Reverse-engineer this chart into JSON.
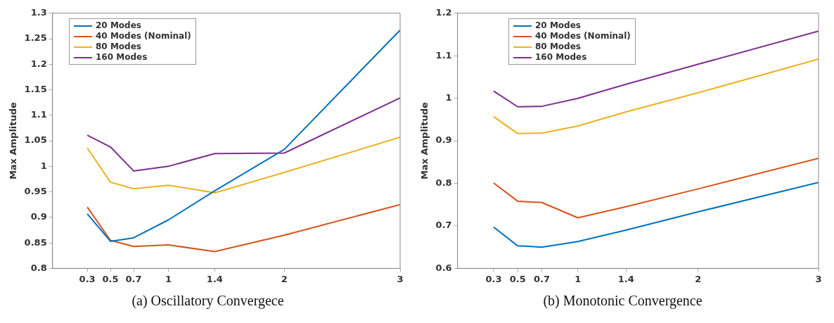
{
  "chart_data": [
    {
      "type": "line",
      "title": "(a) Oscillatory Convergece",
      "ylabel": "Max Amplitude",
      "x": [
        0.3,
        0.5,
        0.7,
        1,
        1.4,
        2,
        3
      ],
      "xlim": [
        0,
        3
      ],
      "xticks": [
        0.3,
        0.5,
        0.7,
        1,
        1.4,
        2,
        3
      ],
      "ylim": [
        0.8,
        1.3
      ],
      "yticks": [
        0.8,
        0.85,
        0.9,
        0.95,
        1,
        1.05,
        1.1,
        1.15,
        1.2,
        1.25,
        1.3
      ],
      "legend": "top left",
      "marker": "none",
      "line_style": "solid",
      "series": [
        {
          "name": "20 Modes",
          "color": "#0072bd",
          "values": [
            0.907,
            0.853,
            0.86,
            0.895,
            0.952,
            1.033,
            1.267
          ]
        },
        {
          "name": "40 Modes (Nominal)",
          "color": "#d95319",
          "values": [
            0.92,
            0.855,
            0.843,
            0.846,
            0.833,
            0.865,
            0.925
          ]
        },
        {
          "name": "80 Modes",
          "color": "#edb120",
          "values": [
            1.036,
            0.969,
            0.956,
            0.963,
            0.948,
            0.988,
            1.057
          ]
        },
        {
          "name": "160 Modes",
          "color": "#7e2f8e",
          "values": [
            1.061,
            1.038,
            0.991,
            1.0,
            1.025,
            1.026,
            1.134
          ]
        }
      ]
    },
    {
      "type": "line",
      "title": "(b) Monotonic Convergence",
      "ylabel": "Max Amplitude",
      "x": [
        0.3,
        0.5,
        0.7,
        1,
        1.4,
        2,
        3
      ],
      "xlim": [
        0,
        3
      ],
      "xticks": [
        0.3,
        0.5,
        0.7,
        1,
        1.4,
        2,
        3
      ],
      "ylim": [
        0.6,
        1.2
      ],
      "yticks": [
        0.6,
        0.7,
        0.8,
        0.9,
        1,
        1.1,
        1.2
      ],
      "legend": "top left",
      "marker": "none",
      "line_style": "solid",
      "series": [
        {
          "name": "20 Modes",
          "color": "#0072bd",
          "values": [
            0.697,
            0.653,
            0.65,
            0.663,
            0.69,
            0.733,
            0.802
          ]
        },
        {
          "name": "40 Modes (Nominal)",
          "color": "#d95319",
          "values": [
            0.801,
            0.758,
            0.755,
            0.719,
            0.745,
            0.787,
            0.859
          ]
        },
        {
          "name": "80 Modes",
          "color": "#edb120",
          "values": [
            0.957,
            0.917,
            0.918,
            0.935,
            0.968,
            1.013,
            1.092
          ]
        },
        {
          "name": "160 Modes",
          "color": "#7e2f8e",
          "values": [
            1.017,
            0.98,
            0.981,
            1.0,
            1.033,
            1.08,
            1.158
          ]
        }
      ]
    }
  ]
}
